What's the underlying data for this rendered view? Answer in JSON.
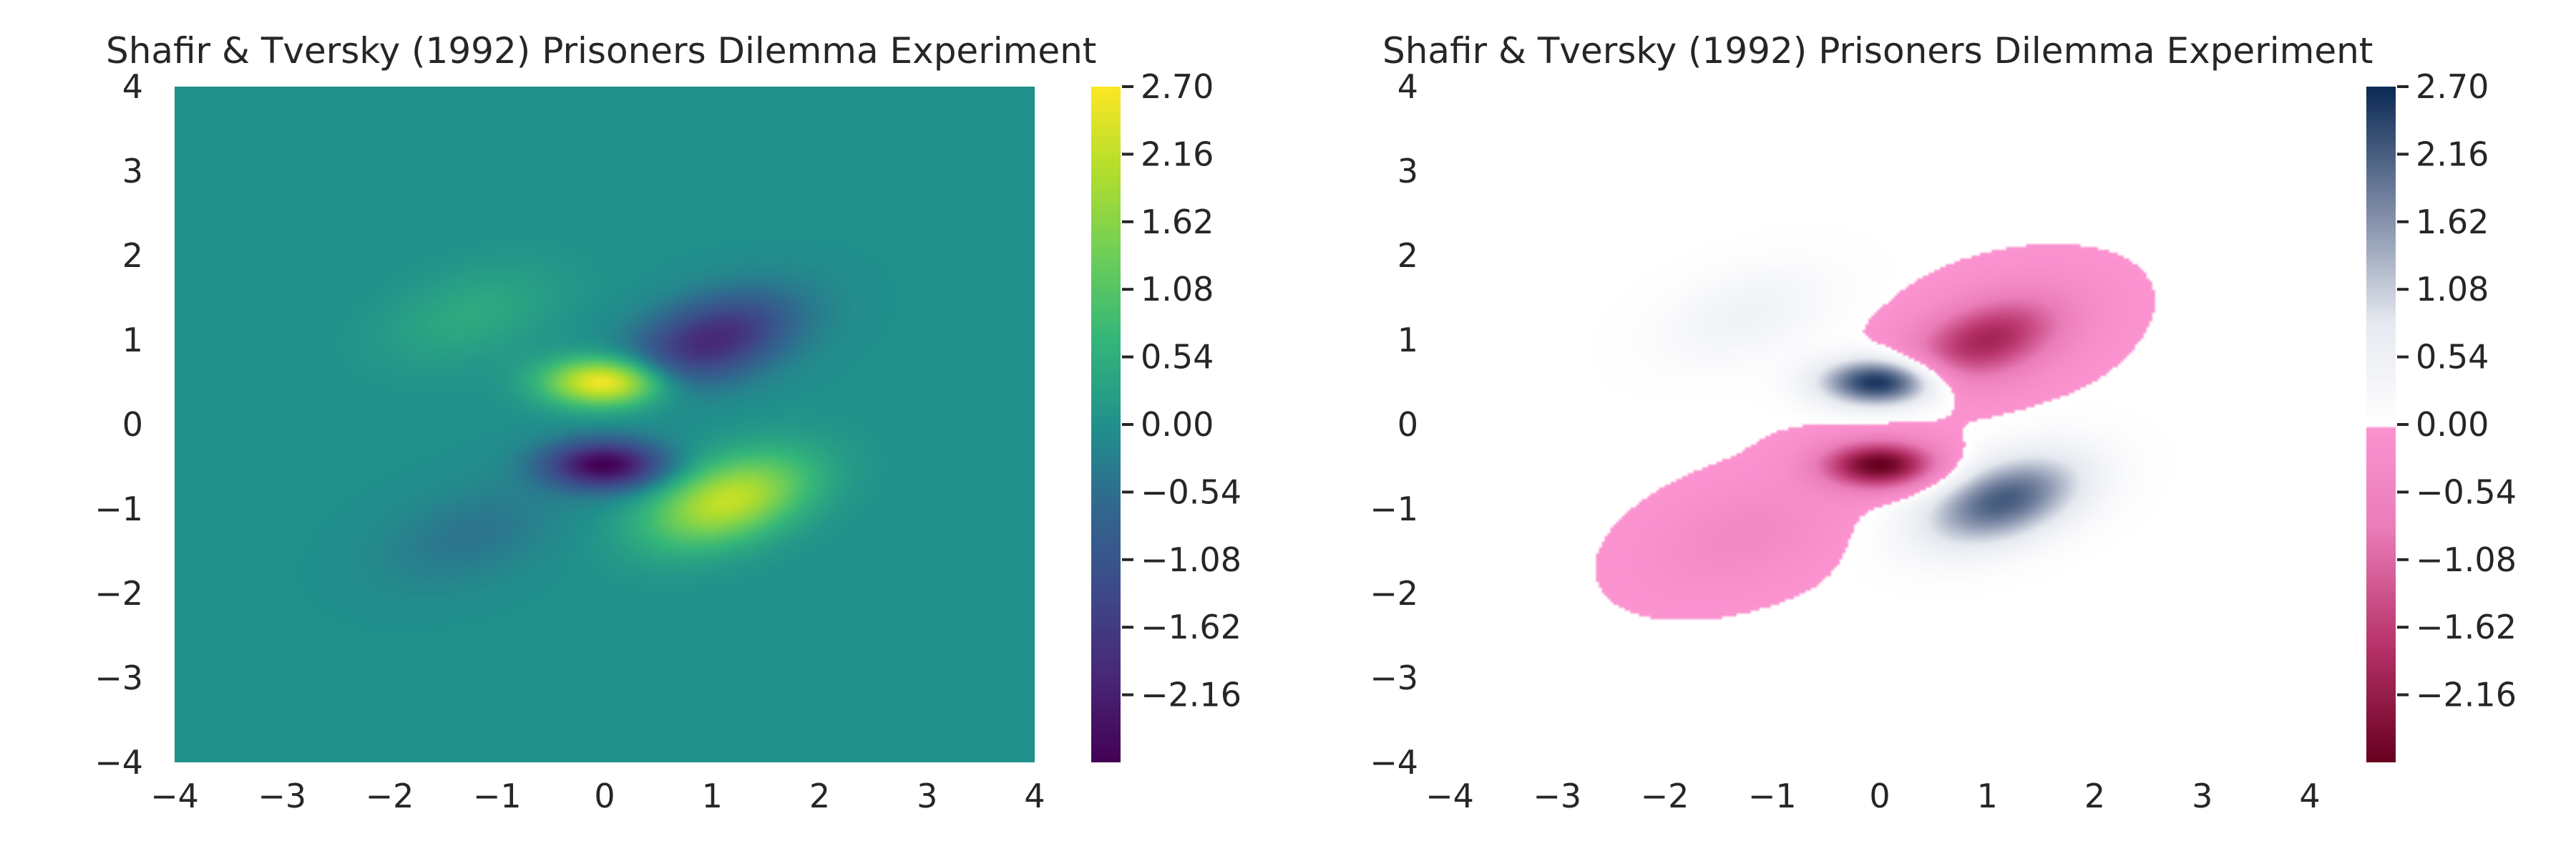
{
  "chart_data": [
    {
      "type": "heatmap",
      "title": "Shafir & Tversky (1992) Prisoners Dilemma Experiment",
      "xlabel": "",
      "ylabel": "",
      "xlim": [
        -4,
        4
      ],
      "ylim": [
        -4,
        4
      ],
      "xticks": [
        "−4",
        "−3",
        "−2",
        "−1",
        "0",
        "1",
        "2",
        "3",
        "4"
      ],
      "yticks": [
        "−4",
        "−3",
        "−2",
        "−1",
        "0",
        "1",
        "2",
        "3",
        "4"
      ],
      "colormap": "viridis",
      "colorbar": {
        "range": [
          -2.7,
          2.7
        ],
        "ticks": [
          2.7,
          2.16,
          1.62,
          1.08,
          0.54,
          0.0,
          -0.54,
          -1.08,
          -1.62,
          -2.16
        ],
        "tick_labels": [
          "2.70",
          "2.16",
          "1.62",
          "1.08",
          "0.54",
          "0.00",
          "−0.54",
          "−1.08",
          "−1.62",
          "−2.16"
        ]
      },
      "grid": false,
      "notable_values": [
        {
          "x": 0.0,
          "y": 0.5,
          "value": 2.7
        },
        {
          "x": 1.1,
          "y": -0.9,
          "value": 2.2
        },
        {
          "x": 0.0,
          "y": -0.5,
          "value": -2.6
        },
        {
          "x": 1.0,
          "y": 1.0,
          "value": -2.0
        },
        {
          "x": -1.3,
          "y": 1.3,
          "value": 0.4
        },
        {
          "x": -1.2,
          "y": -1.3,
          "value": -0.4
        }
      ]
    },
    {
      "type": "heatmap",
      "title": "Shafir & Tversky (1992) Prisoners Dilemma Experiment",
      "xlabel": "",
      "ylabel": "",
      "xlim": [
        -4,
        4
      ],
      "ylim": [
        -4,
        4
      ],
      "xticks": [
        "−4",
        "−3",
        "−2",
        "−1",
        "0",
        "1",
        "2",
        "3",
        "4"
      ],
      "yticks": [
        "−4",
        "−3",
        "−2",
        "−1",
        "0",
        "1",
        "2",
        "3",
        "4"
      ],
      "colormap": "diverging (dark red – pink | white – navy)",
      "colorbar": {
        "range": [
          -2.7,
          2.7
        ],
        "ticks": [
          2.7,
          2.16,
          1.62,
          1.08,
          0.54,
          0.0,
          -0.54,
          -1.08,
          -1.62,
          -2.16
        ],
        "tick_labels": [
          "2.70",
          "2.16",
          "1.62",
          "1.08",
          "0.54",
          "0.00",
          "−0.54",
          "−1.08",
          "−1.62",
          "−2.16"
        ]
      },
      "grid": false,
      "notable_values": [
        {
          "x": 0.0,
          "y": 0.5,
          "value": 2.7
        },
        {
          "x": 1.1,
          "y": -0.9,
          "value": 2.2
        },
        {
          "x": 0.0,
          "y": -0.5,
          "value": -2.6
        },
        {
          "x": 1.0,
          "y": 1.0,
          "value": -2.0
        },
        {
          "x": -1.3,
          "y": 1.3,
          "value": 0.4
        },
        {
          "x": -1.2,
          "y": -1.3,
          "value": -0.4
        }
      ]
    }
  ],
  "colors": {
    "viridis_low": "#440154",
    "viridis_mid": "#21918c",
    "viridis_high": "#fde725",
    "diverging_low": "#67001f",
    "diverging_negative_near_zero": "#fb93d0",
    "diverging_zero": "#ffffff",
    "diverging_high": "#0b2a55"
  }
}
